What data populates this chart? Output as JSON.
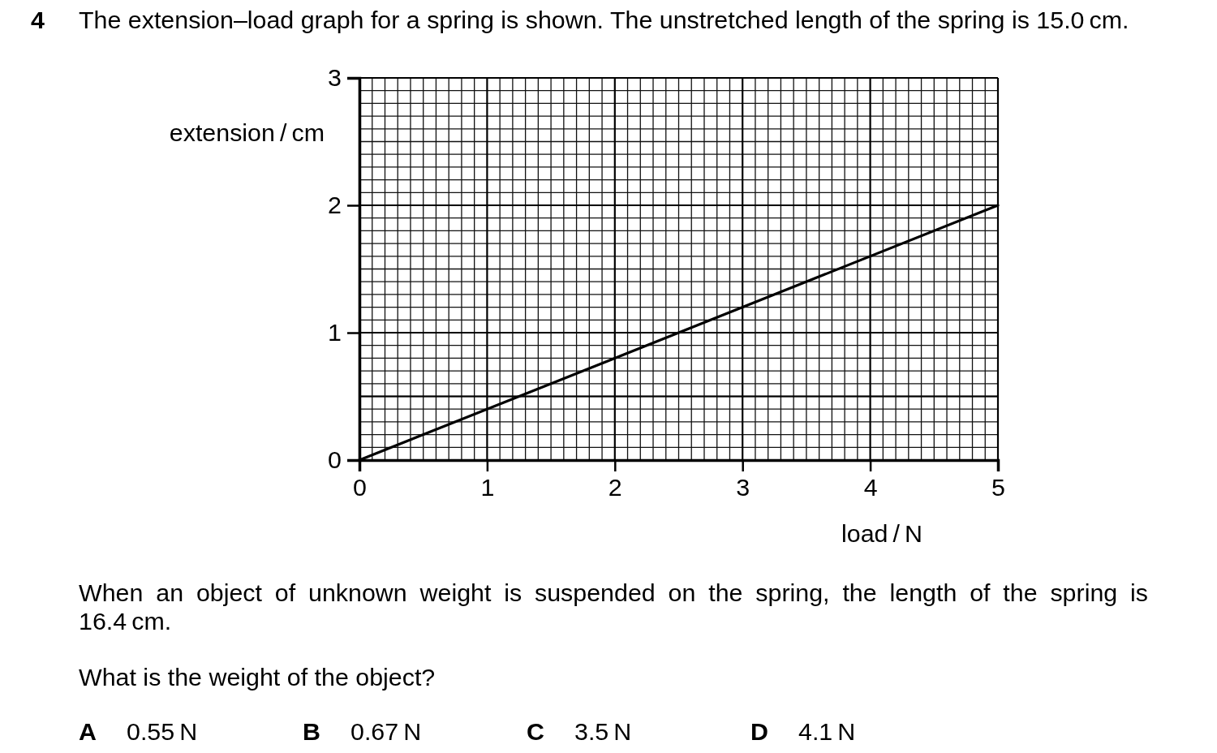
{
  "chart_data": {
    "type": "line",
    "title": "The extension–load graph for a spring is shown. The unstretched length of the spring is 15.0 cm.",
    "xlabel": "load / N",
    "ylabel": "extension / cm",
    "annotations": [
      "4",
      "When an object of unknown weight is suspended on the spring, the length of the spring is 16.4 cm.",
      "What is the weight of the object?",
      "A",
      "0.55 N",
      "B",
      "0.67 N",
      "C",
      "3.5 N",
      "D",
      "4.1 N"
    ],
    "x": [
      0,
      5
    ],
    "series": [
      {
        "color": "#000000",
        "values": [
          0,
          2
        ]
      }
    ],
    "xlim": [
      0,
      5
    ],
    "ylim": [
      0,
      3
    ],
    "xticks": [
      0,
      1,
      2,
      3,
      4,
      5
    ],
    "yticks": [
      0,
      1,
      2,
      3
    ],
    "grid": true,
    "line_style": "solid",
    "ref_lines": [
      {
        "axis": "y",
        "value": 0.5,
        "color": "#000000"
      }
    ]
  }
}
